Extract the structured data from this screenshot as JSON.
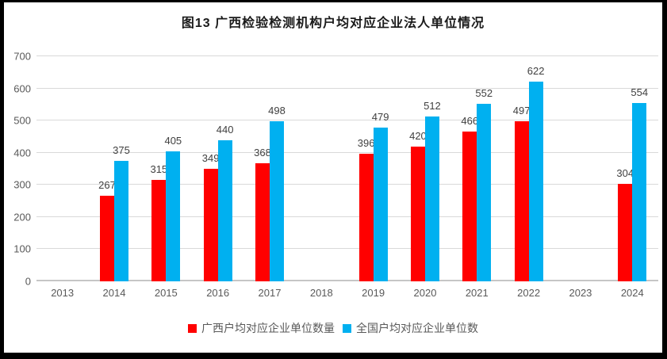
{
  "frame": {
    "background": "#ffffff",
    "border_color": "#000000"
  },
  "chart_data": {
    "type": "bar",
    "title": "图13 广西检验检测机构户均对应企业法人单位情况",
    "categories": [
      "2013",
      "2014",
      "2015",
      "2016",
      "2017",
      "2018",
      "2019",
      "2020",
      "2021",
      "2022",
      "2023",
      "2024"
    ],
    "series": [
      {
        "name": "广西户均对应企业单位数量",
        "color": "#ff0000",
        "values": [
          null,
          267,
          315,
          349,
          368,
          null,
          396,
          420,
          466,
          497,
          null,
          304
        ]
      },
      {
        "name": "全国户均对应企业单位数",
        "color": "#00b0f0",
        "values": [
          null,
          375,
          405,
          440,
          498,
          null,
          479,
          512,
          552,
          622,
          null,
          554
        ]
      }
    ],
    "ylim": [
      0,
      700
    ],
    "yticks": [
      0,
      100,
      200,
      300,
      400,
      500,
      600,
      700
    ],
    "xlabel": "",
    "ylabel": "",
    "grid": true,
    "legend_position": "bottom",
    "data_labels": true,
    "colors": {
      "grid": "#d9d9d9",
      "axis_text": "#595959",
      "data_label": "#404040",
      "title_text": "#1a1a1a"
    }
  }
}
